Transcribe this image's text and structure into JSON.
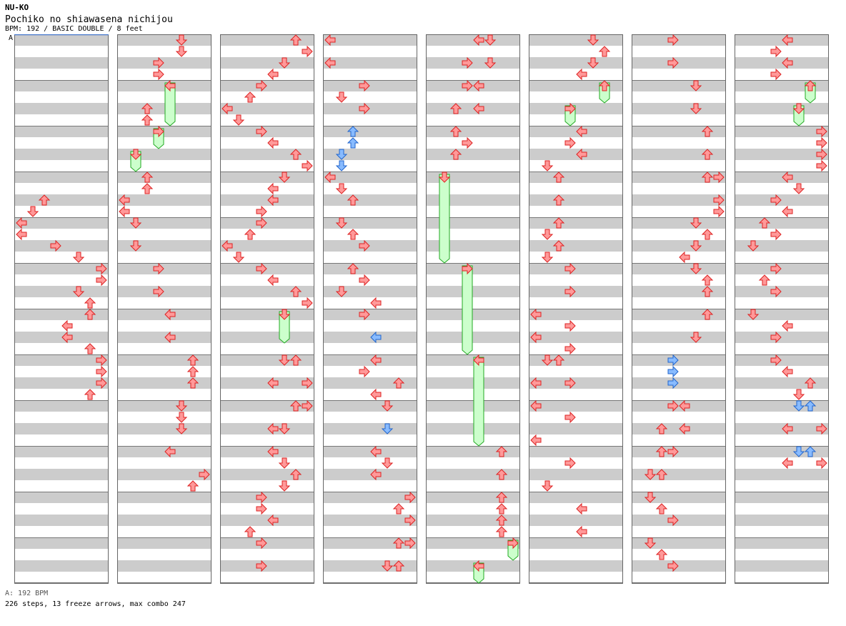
{
  "header": {
    "artist": "NU-KO",
    "title": "Pochiko no shiawasena nichijou",
    "info": "BPM: 192 / BASIC DOUBLE / 8 feet",
    "bpm_marker": "A"
  },
  "footer": {
    "bpm_note": "A: 192 BPM",
    "summary": "226 steps, 13 freeze arrows, max combo 247"
  },
  "colors": {
    "arrow_red": "#ff9999",
    "arrow_red_stroke": "#dd2222",
    "arrow_blue": "#88bbff",
    "arrow_blue_stroke": "#2266cc",
    "freeze_fill": "#ccffcc",
    "freeze_stroke": "#22aa22",
    "stripe": "#cccccc"
  },
  "chart": {
    "columns": [
      [
        [
          14,
          2,
          "r"
        ],
        [
          15,
          1,
          "r"
        ],
        [
          16,
          0,
          "r"
        ],
        [
          17,
          0,
          "r"
        ],
        [
          18,
          3,
          "r"
        ],
        [
          19,
          5,
          "r"
        ],
        [
          20,
          7,
          "r"
        ],
        [
          21,
          7,
          "r"
        ],
        [
          22,
          5,
          "r"
        ],
        [
          23,
          6,
          "r"
        ],
        [
          24,
          6,
          "r"
        ],
        [
          25,
          4,
          "r"
        ],
        [
          26,
          4,
          "r"
        ],
        [
          27,
          6,
          "r"
        ],
        [
          28,
          7,
          "r"
        ],
        [
          29,
          7,
          "r"
        ],
        [
          30,
          7,
          "r"
        ],
        [
          31,
          6,
          "r"
        ]
      ],
      [
        [
          0,
          5,
          "r"
        ],
        [
          1,
          5,
          "r"
        ],
        [
          2,
          3,
          "r"
        ],
        [
          3,
          3,
          "r"
        ],
        [
          4,
          4,
          "g",
          7
        ],
        [
          6,
          2,
          "r"
        ],
        [
          7,
          2,
          "r"
        ],
        [
          8,
          3,
          "g",
          9
        ],
        [
          10,
          1,
          "g",
          11
        ],
        [
          12,
          2,
          "r"
        ],
        [
          13,
          2,
          "r"
        ],
        [
          14,
          0,
          "r"
        ],
        [
          15,
          0,
          "r"
        ],
        [
          16,
          1,
          "r"
        ],
        [
          18,
          1,
          "r"
        ],
        [
          20,
          3,
          "r"
        ],
        [
          22,
          3,
          "r"
        ],
        [
          24,
          4,
          "r"
        ],
        [
          26,
          4,
          "r"
        ],
        [
          28,
          6,
          "r"
        ],
        [
          29,
          6,
          "r"
        ],
        [
          30,
          6,
          "r"
        ],
        [
          32,
          5,
          "r"
        ],
        [
          33,
          5,
          "r"
        ],
        [
          34,
          5,
          "r"
        ],
        [
          36,
          4,
          "r"
        ],
        [
          38,
          7,
          "r"
        ],
        [
          39,
          6,
          "r"
        ]
      ],
      [
        [
          0,
          6,
          "r"
        ],
        [
          1,
          7,
          "r"
        ],
        [
          2,
          5,
          "r"
        ],
        [
          3,
          4,
          "r"
        ],
        [
          4,
          3,
          "r"
        ],
        [
          5,
          2,
          "r"
        ],
        [
          6,
          0,
          "r"
        ],
        [
          7,
          1,
          "r"
        ],
        [
          8,
          3,
          "r"
        ],
        [
          9,
          4,
          "r"
        ],
        [
          10,
          6,
          "r"
        ],
        [
          11,
          7,
          "r"
        ],
        [
          12,
          5,
          "r"
        ],
        [
          13,
          4,
          "r"
        ],
        [
          14,
          4,
          "r"
        ],
        [
          15,
          3,
          "r"
        ],
        [
          16,
          3,
          "r"
        ],
        [
          17,
          2,
          "r"
        ],
        [
          18,
          0,
          "r"
        ],
        [
          19,
          1,
          "r"
        ],
        [
          20,
          3,
          "r"
        ],
        [
          21,
          4,
          "r"
        ],
        [
          22,
          6,
          "r"
        ],
        [
          23,
          7,
          "r"
        ],
        [
          24,
          5,
          "g",
          26
        ],
        [
          28,
          5,
          "r"
        ],
        [
          28,
          6,
          "r"
        ],
        [
          30,
          4,
          "r"
        ],
        [
          30,
          7,
          "r"
        ],
        [
          32,
          6,
          "r"
        ],
        [
          32,
          7,
          "r"
        ],
        [
          34,
          4,
          "r"
        ],
        [
          34,
          5,
          "r"
        ],
        [
          36,
          4,
          "r"
        ],
        [
          37,
          5,
          "r"
        ],
        [
          38,
          6,
          "r"
        ],
        [
          39,
          5,
          "r"
        ],
        [
          40,
          3,
          "r"
        ],
        [
          41,
          3,
          "r"
        ],
        [
          42,
          4,
          "r"
        ],
        [
          43,
          2,
          "r"
        ],
        [
          44,
          3,
          "r"
        ],
        [
          46,
          3,
          "r"
        ]
      ],
      [
        [
          0,
          0,
          "r"
        ],
        [
          2,
          0,
          "r"
        ],
        [
          4,
          3,
          "r"
        ],
        [
          5,
          1,
          "r"
        ],
        [
          6,
          3,
          "r"
        ],
        [
          8,
          2,
          "b"
        ],
        [
          9,
          2,
          "b"
        ],
        [
          10,
          1,
          "b"
        ],
        [
          11,
          1,
          "b"
        ],
        [
          12,
          0,
          "r"
        ],
        [
          13,
          1,
          "r"
        ],
        [
          14,
          2,
          "r"
        ],
        [
          16,
          1,
          "r"
        ],
        [
          17,
          2,
          "r"
        ],
        [
          18,
          3,
          "r"
        ],
        [
          20,
          2,
          "r"
        ],
        [
          21,
          3,
          "r"
        ],
        [
          22,
          1,
          "r"
        ],
        [
          23,
          4,
          "r"
        ],
        [
          24,
          3,
          "r"
        ],
        [
          26,
          4,
          "b"
        ],
        [
          28,
          4,
          "r"
        ],
        [
          29,
          3,
          "r"
        ],
        [
          30,
          6,
          "r"
        ],
        [
          31,
          4,
          "r"
        ],
        [
          32,
          5,
          "r"
        ],
        [
          34,
          5,
          "b"
        ],
        [
          36,
          4,
          "r"
        ],
        [
          37,
          5,
          "r"
        ],
        [
          38,
          4,
          "r"
        ],
        [
          40,
          7,
          "r"
        ],
        [
          41,
          6,
          "r"
        ],
        [
          42,
          7,
          "r"
        ],
        [
          44,
          6,
          "r"
        ],
        [
          44,
          7,
          "r"
        ],
        [
          46,
          5,
          "r"
        ],
        [
          46,
          6,
          "r"
        ]
      ],
      [
        [
          0,
          4,
          "r"
        ],
        [
          0,
          5,
          "r"
        ],
        [
          2,
          3,
          "r"
        ],
        [
          2,
          5,
          "r"
        ],
        [
          4,
          3,
          "r"
        ],
        [
          4,
          4,
          "r"
        ],
        [
          6,
          2,
          "r"
        ],
        [
          6,
          4,
          "r"
        ],
        [
          8,
          2,
          "r"
        ],
        [
          9,
          3,
          "r"
        ],
        [
          10,
          2,
          "r"
        ],
        [
          12,
          1,
          "g",
          19
        ],
        [
          20,
          3,
          "g",
          27
        ],
        [
          28,
          4,
          "g",
          35
        ],
        [
          36,
          6,
          "r"
        ],
        [
          38,
          6,
          "r"
        ],
        [
          40,
          6,
          "r"
        ],
        [
          41,
          6,
          "r"
        ],
        [
          42,
          6,
          "r"
        ],
        [
          43,
          6,
          "r"
        ],
        [
          44,
          7,
          "g",
          45
        ],
        [
          46,
          4,
          "g",
          47
        ]
      ],
      [
        [
          0,
          5,
          "r"
        ],
        [
          1,
          6,
          "r"
        ],
        [
          2,
          5,
          "r"
        ],
        [
          3,
          4,
          "r"
        ],
        [
          4,
          6,
          "g",
          5
        ],
        [
          6,
          3,
          "g",
          7
        ],
        [
          8,
          4,
          "r"
        ],
        [
          9,
          3,
          "r"
        ],
        [
          10,
          4,
          "r"
        ],
        [
          11,
          1,
          "r"
        ],
        [
          12,
          2,
          "r"
        ],
        [
          14,
          2,
          "r"
        ],
        [
          16,
          2,
          "r"
        ],
        [
          17,
          1,
          "r"
        ],
        [
          18,
          2,
          "r"
        ],
        [
          19,
          1,
          "r"
        ],
        [
          20,
          3,
          "r"
        ],
        [
          22,
          3,
          "r"
        ],
        [
          24,
          0,
          "r"
        ],
        [
          25,
          3,
          "r"
        ],
        [
          26,
          0,
          "r"
        ],
        [
          27,
          3,
          "r"
        ],
        [
          28,
          1,
          "r"
        ],
        [
          28,
          2,
          "r"
        ],
        [
          30,
          0,
          "r"
        ],
        [
          30,
          3,
          "r"
        ],
        [
          32,
          0,
          "r"
        ],
        [
          33,
          3,
          "r"
        ],
        [
          35,
          0,
          "r"
        ],
        [
          37,
          3,
          "r"
        ],
        [
          39,
          1,
          "r"
        ],
        [
          41,
          4,
          "r"
        ],
        [
          43,
          4,
          "r"
        ]
      ],
      [
        [
          0,
          3,
          "r"
        ],
        [
          2,
          3,
          "r"
        ],
        [
          4,
          5,
          "r"
        ],
        [
          6,
          5,
          "r"
        ],
        [
          8,
          6,
          "r"
        ],
        [
          10,
          6,
          "r"
        ],
        [
          12,
          6,
          "r"
        ],
        [
          12,
          7,
          "r"
        ],
        [
          14,
          7,
          "r"
        ],
        [
          15,
          7,
          "r"
        ],
        [
          16,
          5,
          "r"
        ],
        [
          17,
          6,
          "r"
        ],
        [
          18,
          5,
          "r"
        ],
        [
          19,
          4,
          "r"
        ],
        [
          20,
          5,
          "r"
        ],
        [
          21,
          6,
          "r"
        ],
        [
          22,
          6,
          "r"
        ],
        [
          24,
          6,
          "r"
        ],
        [
          26,
          5,
          "r"
        ],
        [
          28,
          3,
          "b"
        ],
        [
          29,
          3,
          "b"
        ],
        [
          30,
          3,
          "b"
        ],
        [
          32,
          3,
          "r"
        ],
        [
          32,
          4,
          "r"
        ],
        [
          34,
          2,
          "r"
        ],
        [
          34,
          4,
          "r"
        ],
        [
          36,
          2,
          "r"
        ],
        [
          36,
          3,
          "r"
        ],
        [
          38,
          1,
          "r"
        ],
        [
          38,
          2,
          "r"
        ],
        [
          40,
          1,
          "r"
        ],
        [
          41,
          2,
          "r"
        ],
        [
          42,
          3,
          "r"
        ],
        [
          44,
          1,
          "r"
        ],
        [
          45,
          2,
          "r"
        ],
        [
          46,
          3,
          "r"
        ]
      ],
      [
        [
          0,
          4,
          "r"
        ],
        [
          1,
          3,
          "r"
        ],
        [
          2,
          4,
          "r"
        ],
        [
          3,
          3,
          "r"
        ],
        [
          4,
          6,
          "g",
          5
        ],
        [
          6,
          5,
          "g",
          7
        ],
        [
          8,
          7,
          "r"
        ],
        [
          9,
          7,
          "r"
        ],
        [
          10,
          7,
          "r"
        ],
        [
          11,
          7,
          "r"
        ],
        [
          12,
          4,
          "r"
        ],
        [
          13,
          5,
          "r"
        ],
        [
          14,
          3,
          "r"
        ],
        [
          15,
          4,
          "r"
        ],
        [
          16,
          2,
          "r"
        ],
        [
          17,
          3,
          "r"
        ],
        [
          18,
          1,
          "r"
        ],
        [
          20,
          3,
          "r"
        ],
        [
          21,
          2,
          "r"
        ],
        [
          22,
          3,
          "r"
        ],
        [
          24,
          1,
          "r"
        ],
        [
          25,
          4,
          "r"
        ],
        [
          26,
          3,
          "r"
        ],
        [
          28,
          3,
          "r"
        ],
        [
          29,
          4,
          "r"
        ],
        [
          30,
          6,
          "r"
        ],
        [
          31,
          5,
          "r"
        ],
        [
          32,
          5,
          "b"
        ],
        [
          32,
          6,
          "b"
        ],
        [
          34,
          4,
          "r"
        ],
        [
          34,
          7,
          "r"
        ],
        [
          36,
          5,
          "b"
        ],
        [
          36,
          6,
          "b"
        ],
        [
          37,
          4,
          "r"
        ],
        [
          37,
          7,
          "r"
        ]
      ]
    ]
  }
}
